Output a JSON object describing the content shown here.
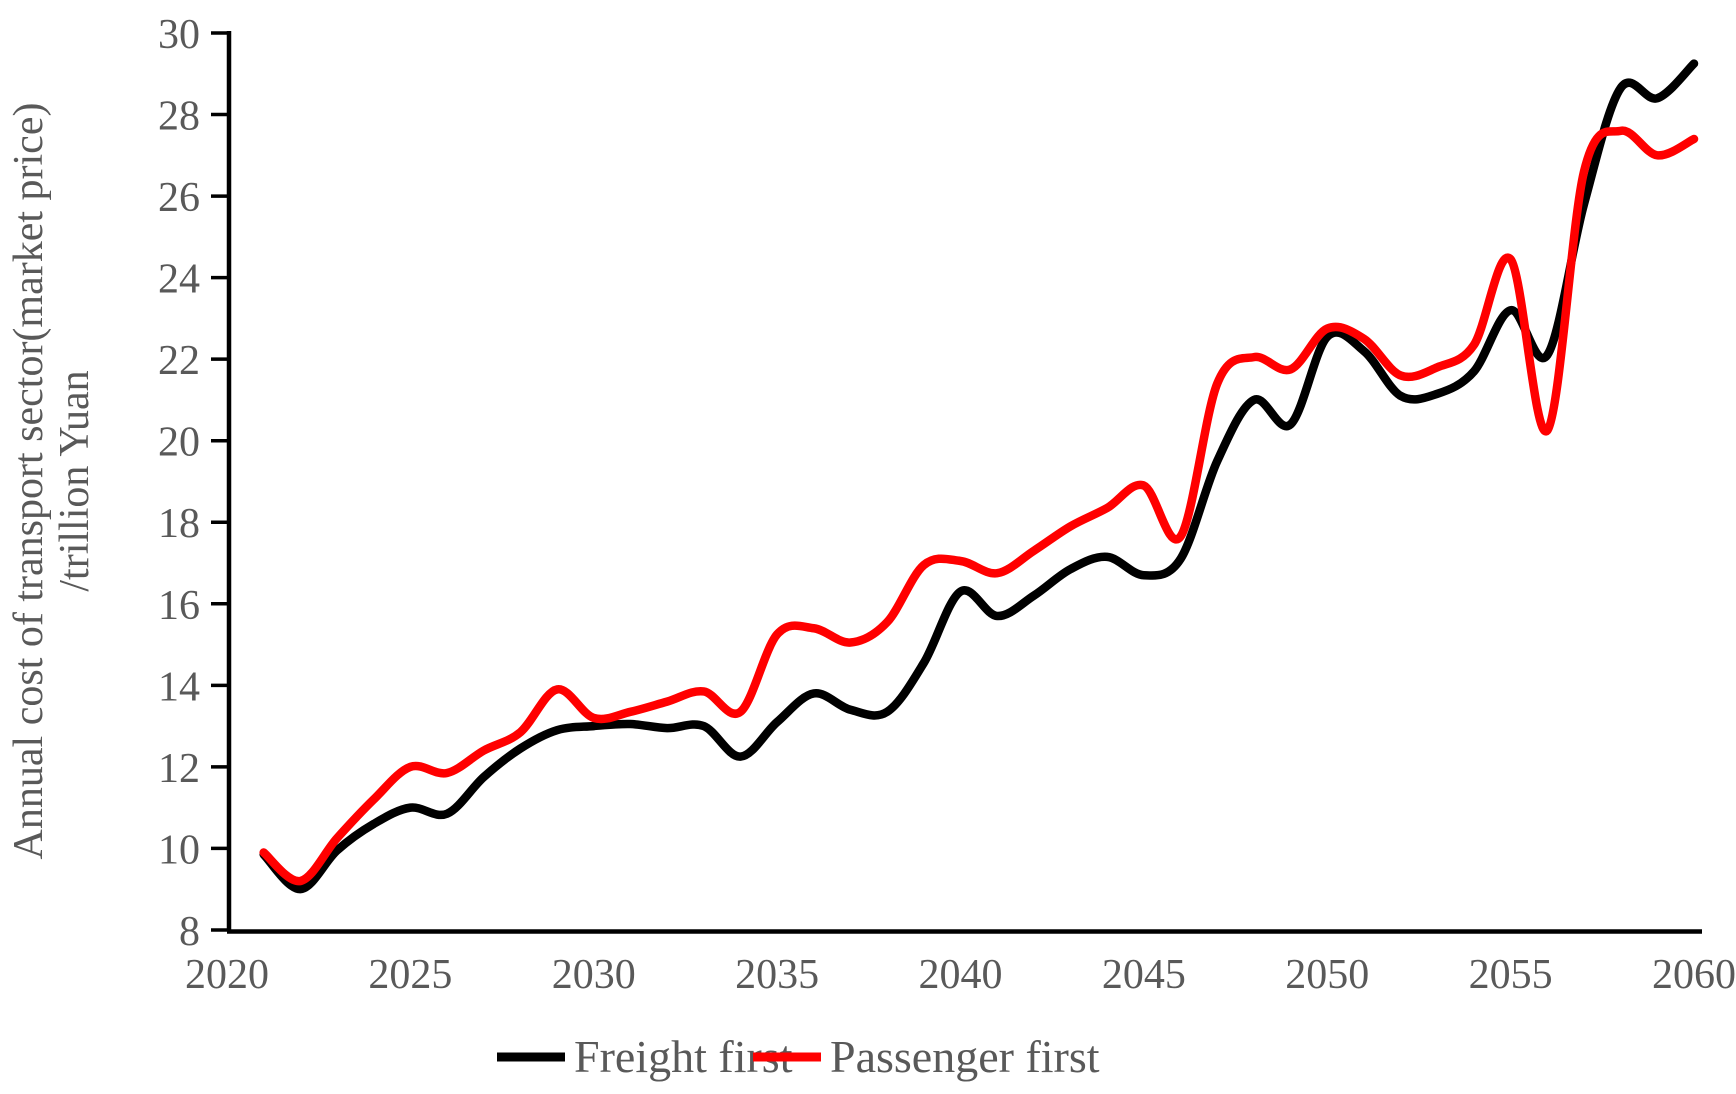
{
  "chart_data": {
    "type": "line",
    "title": "",
    "xlabel": "",
    "ylabel_line1": "Annual cost of transport sector(market price)",
    "ylabel_line2": "/trillion Yuan",
    "x": [
      2021,
      2022,
      2023,
      2024,
      2025,
      2026,
      2027,
      2028,
      2029,
      2030,
      2031,
      2032,
      2033,
      2034,
      2035,
      2036,
      2037,
      2038,
      2039,
      2040,
      2041,
      2042,
      2043,
      2044,
      2045,
      2046,
      2047,
      2048,
      2049,
      2050,
      2051,
      2052,
      2053,
      2054,
      2055,
      2056,
      2057,
      2058,
      2059,
      2060
    ],
    "series": [
      {
        "name": "Freight first",
        "color": "#000000",
        "values": [
          9.85,
          9.0,
          9.95,
          10.6,
          11.0,
          10.85,
          11.75,
          12.45,
          12.9,
          13.0,
          13.05,
          12.95,
          13.0,
          12.25,
          13.1,
          13.8,
          13.4,
          13.35,
          14.55,
          16.3,
          15.7,
          16.2,
          16.85,
          17.15,
          16.7,
          17.1,
          19.5,
          21.0,
          20.4,
          22.55,
          22.2,
          21.1,
          21.15,
          21.7,
          23.2,
          22.1,
          25.8,
          28.65,
          28.4,
          29.25
        ]
      },
      {
        "name": "Passenger first",
        "color": "#ff0000",
        "values": [
          9.9,
          9.2,
          10.25,
          11.2,
          12.0,
          11.85,
          12.4,
          12.85,
          13.9,
          13.2,
          13.35,
          13.6,
          13.85,
          13.35,
          15.25,
          15.4,
          15.05,
          15.55,
          16.95,
          17.05,
          16.75,
          17.3,
          17.9,
          18.35,
          18.9,
          17.65,
          21.4,
          22.05,
          21.75,
          22.75,
          22.5,
          21.6,
          21.8,
          22.35,
          24.45,
          20.25,
          26.6,
          27.6,
          27.0,
          27.4
        ]
      }
    ],
    "xlim": [
      2020,
      2060
    ],
    "ylim": [
      8,
      30
    ],
    "xticks": [
      "2020",
      "2025",
      "2030",
      "2035",
      "2040",
      "2045",
      "2050",
      "2055",
      "2060"
    ],
    "yticks": [
      "8",
      "10",
      "12",
      "14",
      "16",
      "18",
      "20",
      "22",
      "24",
      "26",
      "28",
      "30"
    ],
    "grid": false,
    "legend_position": "bottom-center",
    "smoothed_lines": true
  },
  "style": {
    "axis_color": "#000000",
    "label_color": "#595959",
    "background": "#ffffff",
    "series_line_width": 8.5,
    "axis_line_width": 4.5,
    "tick_line_width": 3.5
  }
}
